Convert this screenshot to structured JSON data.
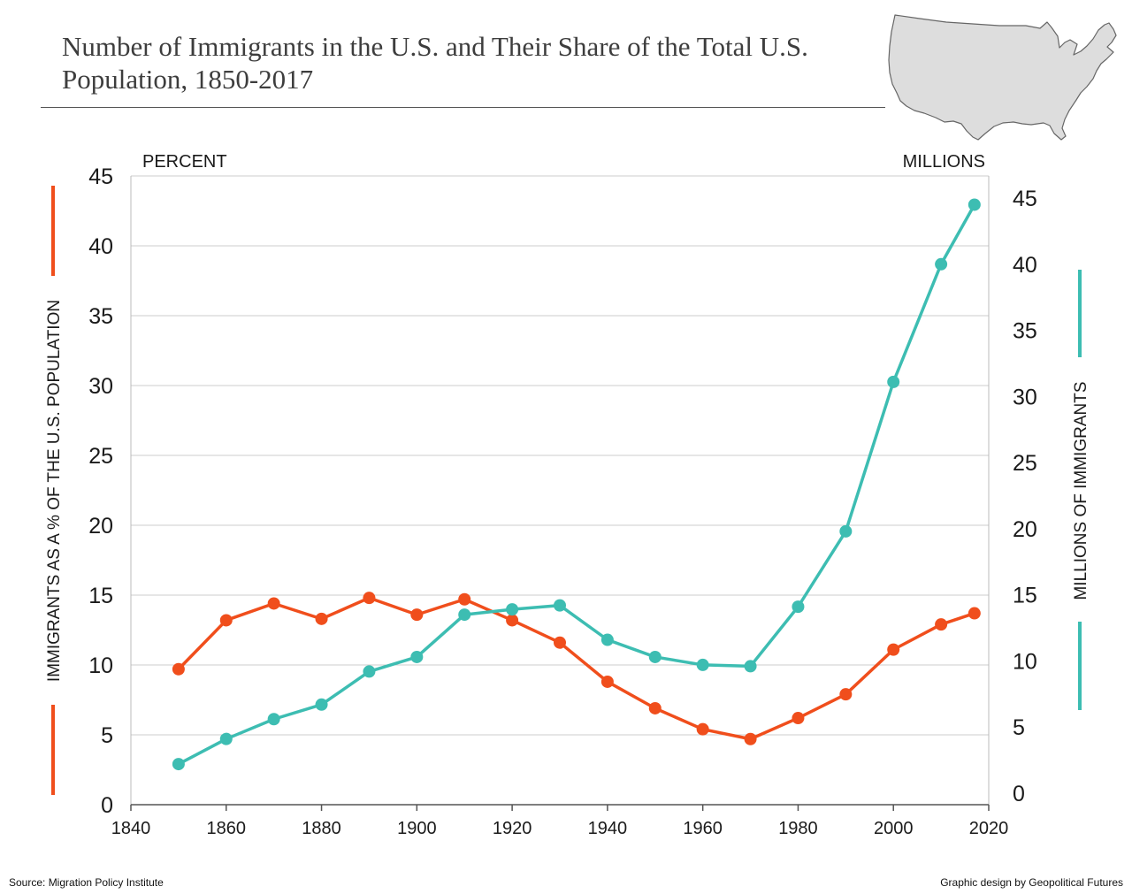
{
  "title": "Number of Immigrants in the U.S. and Their Share of the Total U.S. Population, 1850-2017",
  "source": "Source: Migration Policy Institute",
  "credit": "Graphic design by Geopolitical Futures",
  "colors": {
    "percent": "#f04e1c",
    "millions": "#3dbdb2",
    "grid": "#cccccc",
    "map_fill": "#dddddd",
    "map_stroke": "#666666"
  },
  "chart_data": {
    "type": "line",
    "x": [
      1850,
      1860,
      1870,
      1880,
      1890,
      1900,
      1910,
      1920,
      1930,
      1940,
      1950,
      1960,
      1970,
      1980,
      1990,
      2000,
      2010,
      2017
    ],
    "xticks": [
      "1840",
      "1860",
      "1880",
      "1900",
      "1920",
      "1940",
      "1960",
      "1980",
      "2000",
      "2020"
    ],
    "xlim": [
      1840,
      2020
    ],
    "left_axis": {
      "unit_label": "PERCENT",
      "title": "IMMIGRANTS AS A % OF THE U.S. POPULATION",
      "ylim": [
        0,
        45
      ],
      "ticks": [
        "0",
        "5",
        "10",
        "15",
        "20",
        "25",
        "30",
        "35",
        "40",
        "45"
      ]
    },
    "right_axis": {
      "unit_label": "MILLIONS",
      "title": "MILLIONS OF IMMIGRANTS",
      "ylim": [
        0,
        45
      ],
      "ticks": [
        "0",
        "5",
        "10",
        "15",
        "20",
        "25",
        "30",
        "35",
        "40",
        "45"
      ]
    },
    "series": [
      {
        "key": "percent",
        "axis": "left",
        "values": [
          9.7,
          13.2,
          14.4,
          13.3,
          14.8,
          13.6,
          14.7,
          13.2,
          11.6,
          8.8,
          6.9,
          5.4,
          4.7,
          6.2,
          7.9,
          11.1,
          12.9,
          13.7
        ]
      },
      {
        "key": "millions",
        "axis": "right",
        "values": [
          2.2,
          4.1,
          5.6,
          6.7,
          9.2,
          10.3,
          13.5,
          13.9,
          14.2,
          11.6,
          10.3,
          9.7,
          9.6,
          14.1,
          19.8,
          31.1,
          40.0,
          44.5
        ]
      }
    ],
    "grid": true
  }
}
